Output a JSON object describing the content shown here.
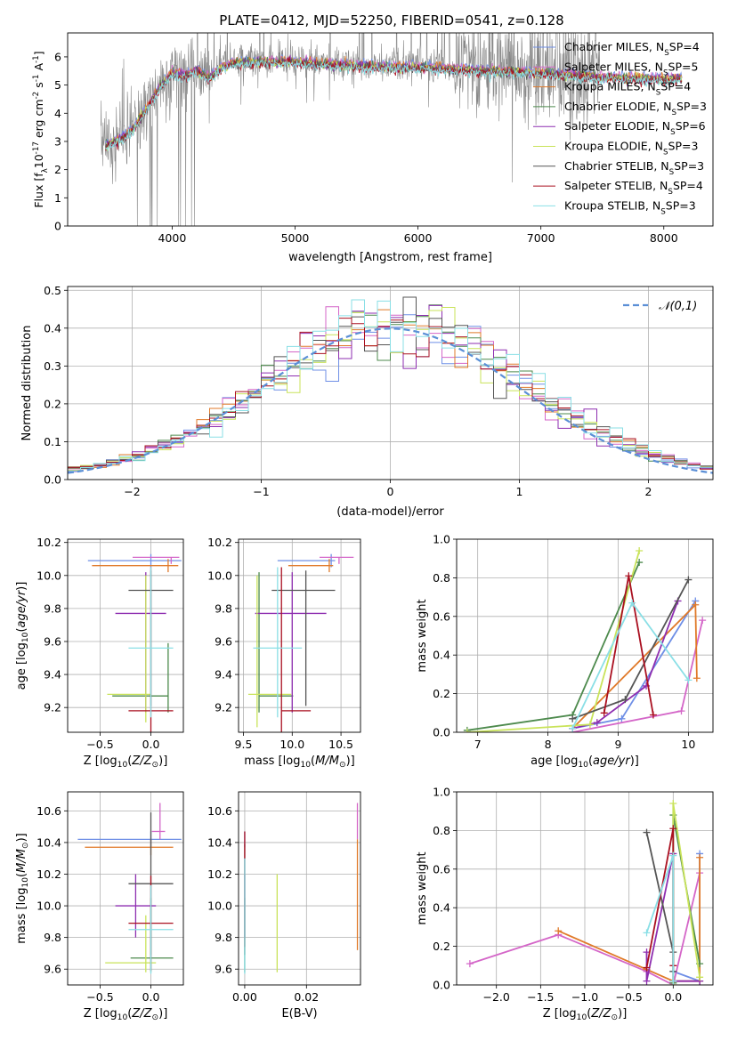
{
  "title": "PLATE=0412, MJD=52250, FIBERID=0541, z=0.128",
  "colors": {
    "Chabrier MILES": "#6f8fe6",
    "Salpeter MILES": "#d466c8",
    "Kroupa MILES": "#e07a2a",
    "Chabrier ELODIE": "#4d8a4d",
    "Salpeter ELODIE": "#8e2eb0",
    "Kroupa ELODIE": "#c9e35a",
    "Chabrier STELIB": "#555555",
    "Salpeter STELIB": "#aa1020",
    "Kroupa STELIB": "#8adfe6",
    "data_spectrum": "#888888",
    "gaussian": "#5b8fd6",
    "grid": "#b0b0b0"
  },
  "chart_data": [
    {
      "id": "spectrum",
      "type": "line",
      "xlabel": "wavelength [Angstrom, rest frame]",
      "ylabel": "Flux [f_λ10^{-17} erg cm^{-2} s^{-1} A^{-1}]",
      "xlim": [
        3150,
        8400
      ],
      "ylim": [
        0,
        6.85
      ],
      "xticks": [
        4000,
        5000,
        6000,
        7000,
        8000
      ],
      "yticks": [
        0,
        1,
        2,
        3,
        4,
        5,
        6
      ],
      "grid": false,
      "legend_position": "top-right",
      "legend": [
        {
          "label": "Chabrier MILES, N_SSP=4",
          "model": "Chabrier MILES"
        },
        {
          "label": "Salpeter MILES, N_SSP=5",
          "model": "Salpeter MILES"
        },
        {
          "label": "Kroupa MILES, N_SSP=4",
          "model": "Kroupa MILES"
        },
        {
          "label": "Chabrier ELODIE, N_SSP=3",
          "model": "Chabrier ELODIE"
        },
        {
          "label": "Salpeter ELODIE, N_SSP=6",
          "model": "Salpeter ELODIE"
        },
        {
          "label": "Kroupa ELODIE, N_SSP=3",
          "model": "Kroupa ELODIE"
        },
        {
          "label": "Chabrier STELIB, N_SSP=3",
          "model": "Chabrier STELIB"
        },
        {
          "label": "Salpeter STELIB, N_SSP=4",
          "model": "Salpeter STELIB"
        },
        {
          "label": "Kroupa STELIB, N_SSP=3",
          "model": "Kroupa STELIB"
        }
      ],
      "continuum": {
        "x": [
          3420,
          3500,
          3600,
          3700,
          3800,
          3900,
          4000,
          4100,
          4200,
          4300,
          4400,
          4500,
          4700,
          5000,
          5500,
          6000,
          6500,
          7000,
          7500,
          8000,
          8300
        ],
        "y": [
          2.9,
          3.0,
          3.2,
          3.6,
          4.3,
          5.0,
          5.5,
          5.4,
          5.6,
          5.3,
          5.7,
          5.85,
          5.9,
          5.9,
          5.75,
          5.7,
          5.6,
          5.5,
          5.35,
          5.3,
          5.3
        ]
      }
    },
    {
      "id": "residuals",
      "type": "step",
      "xlabel": "(data-model)/error",
      "ylabel": "Normed distribution",
      "xlim": [
        -2.5,
        2.5
      ],
      "ylim": [
        0,
        0.51
      ],
      "xticks": [
        -2,
        -1,
        0,
        1,
        2
      ],
      "yticks": [
        0.0,
        0.1,
        0.2,
        0.3,
        0.4,
        0.5
      ],
      "grid": true,
      "bin_width": 0.1,
      "legend_position": "top-right",
      "gaussian_label": "𝒩(0,1)",
      "gaussian": {
        "mean": 0,
        "sigma": 1
      }
    },
    {
      "id": "z-age",
      "type": "errorbar",
      "xlabel": "Z [log10(Z/Z⊙)]",
      "ylabel": "age  [log10(age/yr)]",
      "xlim": [
        -0.82,
        0.32
      ],
      "ylim": [
        9.05,
        10.22
      ],
      "xticks": [
        -0.5,
        0.0
      ],
      "yticks": [
        9.2,
        9.4,
        9.6,
        9.8,
        10.0,
        10.2
      ],
      "grid": true,
      "points": [
        {
          "model": "Chabrier MILES",
          "x": 0.0,
          "xerr": [
            0.62,
            0.3
          ],
          "y": 10.09,
          "yerr": [
            0.04,
            0.04
          ]
        },
        {
          "model": "Salpeter MILES",
          "x": 0.2,
          "xerr": [
            0.38,
            0.08
          ],
          "y": 10.11,
          "yerr": [
            0.04,
            0.0
          ]
        },
        {
          "model": "Kroupa MILES",
          "x": 0.17,
          "xerr": [
            0.75,
            0.1
          ],
          "y": 10.06,
          "yerr": [
            0.04,
            0.04
          ]
        },
        {
          "model": "Chabrier ELODIE",
          "x": 0.17,
          "xerr": [
            0.55,
            0.0
          ],
          "y": 9.27,
          "yerr": [
            0.1,
            0.32
          ]
        },
        {
          "model": "Salpeter ELODIE",
          "x": -0.05,
          "xerr": [
            0.3,
            0.2
          ],
          "y": 9.77,
          "yerr": [
            0.6,
            0.25
          ]
        },
        {
          "model": "Kroupa ELODIE",
          "x": -0.05,
          "xerr": [
            0.38,
            0.05
          ],
          "y": 9.28,
          "yerr": [
            0.17,
            0.72
          ]
        },
        {
          "model": "Chabrier STELIB",
          "x": 0.0,
          "xerr": [
            0.22,
            0.22
          ],
          "y": 9.91,
          "yerr": [
            0.7,
            0.12
          ]
        },
        {
          "model": "Salpeter STELIB",
          "x": 0.0,
          "xerr": [
            0.22,
            0.22
          ],
          "y": 9.18,
          "yerr": [
            0.14,
            0.87
          ]
        },
        {
          "model": "Kroupa STELIB",
          "x": 0.0,
          "xerr": [
            0.22,
            0.22
          ],
          "y": 9.56,
          "yerr": [
            0.42,
            0.49
          ]
        }
      ]
    },
    {
      "id": "mass-age",
      "type": "errorbar",
      "xlabel": "mass [log10(M/M⊙)]",
      "ylabel": "",
      "xlim": [
        9.45,
        10.7
      ],
      "ylim": [
        9.05,
        10.22
      ],
      "xticks": [
        9.5,
        10.0,
        10.5
      ],
      "yticks": [
        9.2,
        9.4,
        9.6,
        9.8,
        10.0,
        10.2
      ],
      "grid": true,
      "points": [
        {
          "model": "Chabrier MILES",
          "x": 10.4,
          "xerr": [
            0.55,
            0.04
          ],
          "y": 10.09,
          "yerr": [
            0.04,
            0.04
          ]
        },
        {
          "model": "Salpeter MILES",
          "x": 10.48,
          "xerr": [
            0.2,
            0.15
          ],
          "y": 10.11,
          "yerr": [
            0.04,
            0.0
          ]
        },
        {
          "model": "Kroupa MILES",
          "x": 10.38,
          "xerr": [
            0.42,
            0.04
          ],
          "y": 10.06,
          "yerr": [
            0.04,
            0.04
          ]
        },
        {
          "model": "Chabrier ELODIE",
          "x": 9.66,
          "xerr": [
            0.0,
            0.35
          ],
          "y": 9.27,
          "yerr": [
            0.1,
            0.75
          ]
        },
        {
          "model": "Salpeter ELODIE",
          "x": 10.0,
          "xerr": [
            0.38,
            0.35
          ],
          "y": 9.77,
          "yerr": [
            0.6,
            0.25
          ]
        },
        {
          "model": "Kroupa ELODIE",
          "x": 9.64,
          "xerr": [
            0.09,
            0.35
          ],
          "y": 9.28,
          "yerr": [
            0.2,
            0.72
          ]
        },
        {
          "model": "Chabrier STELIB",
          "x": 10.14,
          "xerr": [
            0.35,
            0.3
          ],
          "y": 9.91,
          "yerr": [
            0.7,
            0.12
          ]
        },
        {
          "model": "Salpeter STELIB",
          "x": 9.89,
          "xerr": [
            0.0,
            0.3
          ],
          "y": 9.18,
          "yerr": [
            0.14,
            0.87
          ]
        },
        {
          "model": "Kroupa STELIB",
          "x": 9.85,
          "xerr": [
            0.25,
            0.25
          ],
          "y": 9.56,
          "yerr": [
            0.42,
            0.49
          ]
        }
      ]
    },
    {
      "id": "age-weight",
      "type": "line",
      "xlabel": "age  [log10(age/yr)]",
      "ylabel": "mass weight",
      "xlim": [
        6.7,
        10.35
      ],
      "ylim": [
        0,
        1.0
      ],
      "xticks": [
        7,
        8,
        9,
        10
      ],
      "yticks": [
        0.0,
        0.2,
        0.4,
        0.6,
        0.8,
        1.0
      ],
      "grid": true,
      "series": [
        {
          "model": "Chabrier MILES",
          "x": [
            8.35,
            9.05,
            10.1
          ],
          "y": [
            0.02,
            0.07,
            0.68
          ]
        },
        {
          "model": "Salpeter MILES",
          "x": [
            8.35,
            9.9,
            10.2
          ],
          "y": [
            0.0,
            0.11,
            0.58
          ]
        },
        {
          "model": "Kroupa MILES",
          "x": [
            8.35,
            10.1,
            10.12
          ],
          "y": [
            0.02,
            0.66,
            0.28
          ]
        },
        {
          "model": "Chabrier ELODIE",
          "x": [
            6.85,
            8.35,
            9.3
          ],
          "y": [
            0.01,
            0.09,
            0.88
          ]
        },
        {
          "model": "Salpeter ELODIE",
          "x": [
            8.35,
            8.7,
            9.4,
            9.85
          ],
          "y": [
            0.02,
            0.05,
            0.24,
            0.68
          ]
        },
        {
          "model": "Kroupa ELODIE",
          "x": [
            6.85,
            8.6,
            9.3
          ],
          "y": [
            0.0,
            0.04,
            0.94
          ]
        },
        {
          "model": "Chabrier STELIB",
          "x": [
            8.35,
            9.1,
            10.0
          ],
          "y": [
            0.07,
            0.17,
            0.79
          ]
        },
        {
          "model": "Salpeter STELIB",
          "x": [
            8.8,
            9.15,
            9.5
          ],
          "y": [
            0.1,
            0.81,
            0.09
          ]
        },
        {
          "model": "Kroupa STELIB",
          "x": [
            8.35,
            9.2,
            10.0
          ],
          "y": [
            0.02,
            0.67,
            0.27
          ]
        }
      ]
    },
    {
      "id": "z-mass",
      "type": "errorbar",
      "xlabel": "Z [log10(Z/Z⊙)]",
      "ylabel": "mass [log10(M/M⊙)]",
      "xlim": [
        -0.82,
        0.32
      ],
      "ylim": [
        9.5,
        10.72
      ],
      "xticks": [
        -0.5,
        0.0
      ],
      "yticks": [
        9.6,
        9.8,
        10.0,
        10.2,
        10.4,
        10.6
      ],
      "grid": true,
      "points": [
        {
          "model": "Chabrier MILES",
          "x": 0.0,
          "xerr": [
            0.72,
            0.3
          ],
          "y": 10.42,
          "yerr": [
            0.05,
            0.05
          ]
        },
        {
          "model": "Salpeter MILES",
          "x": 0.09,
          "xerr": [
            0.08,
            0.05
          ],
          "y": 10.47,
          "yerr": [
            0.05,
            0.18
          ]
        },
        {
          "model": "Kroupa MILES",
          "x": 0.0,
          "xerr": [
            0.65,
            0.22
          ],
          "y": 10.37,
          "yerr": [
            0.05,
            0.05
          ]
        },
        {
          "model": "Chabrier ELODIE",
          "x": 0.0,
          "xerr": [
            0.2,
            0.22
          ],
          "y": 9.67,
          "yerr": [
            0.09,
            0.38
          ]
        },
        {
          "model": "Salpeter ELODIE",
          "x": -0.15,
          "xerr": [
            0.2,
            0.2
          ],
          "y": 10.0,
          "yerr": [
            0.2,
            0.2
          ]
        },
        {
          "model": "Kroupa ELODIE",
          "x": -0.05,
          "xerr": [
            0.4,
            0.1
          ],
          "y": 9.64,
          "yerr": [
            0.06,
            0.3
          ]
        },
        {
          "model": "Chabrier STELIB",
          "x": 0.0,
          "xerr": [
            0.22,
            0.22
          ],
          "y": 10.14,
          "yerr": [
            0.45,
            0.45
          ]
        },
        {
          "model": "Salpeter STELIB",
          "x": 0.0,
          "xerr": [
            0.22,
            0.22
          ],
          "y": 9.89,
          "yerr": [
            0.3,
            0.3
          ]
        },
        {
          "model": "Kroupa STELIB",
          "x": 0.0,
          "xerr": [
            0.22,
            0.22
          ],
          "y": 9.85,
          "yerr": [
            0.28,
            0.28
          ]
        }
      ]
    },
    {
      "id": "ebv-mass",
      "type": "errorbar",
      "xlabel": "E(B-V)",
      "ylabel": "",
      "xlim": [
        -0.002,
        0.0375
      ],
      "ylim": [
        9.5,
        10.72
      ],
      "xticks": [
        0.0,
        0.02
      ],
      "yticks": [
        9.6,
        9.8,
        10.0,
        10.2,
        10.4,
        10.6
      ],
      "grid": true,
      "points": [
        {
          "model": "Chabrier MILES",
          "x": 0.0,
          "xerr": [
            0,
            0
          ],
          "y": 10.42,
          "yerr": [
            0.05,
            0.05
          ]
        },
        {
          "model": "Salpeter MILES",
          "x": 0.0365,
          "xerr": [
            0,
            0
          ],
          "y": 10.47,
          "yerr": [
            0.05,
            0.18
          ]
        },
        {
          "model": "Kroupa MILES",
          "x": 0.0365,
          "xerr": [
            0,
            0
          ],
          "y": 10.37,
          "yerr": [
            0.65,
            0.05
          ]
        },
        {
          "model": "Chabrier ELODIE",
          "x": 0.0,
          "xerr": [
            0,
            0
          ],
          "y": 9.67,
          "yerr": [
            0.09,
            0.38
          ]
        },
        {
          "model": "Salpeter ELODIE",
          "x": 0.0,
          "xerr": [
            0,
            0
          ],
          "y": 10.0,
          "yerr": [
            0.2,
            0.2
          ]
        },
        {
          "model": "Kroupa ELODIE",
          "x": 0.0105,
          "xerr": [
            0,
            0
          ],
          "y": 9.64,
          "yerr": [
            0.06,
            0.56
          ]
        },
        {
          "model": "Chabrier STELIB",
          "x": 0.0,
          "xerr": [
            0,
            0
          ],
          "y": 10.14,
          "yerr": [
            0.45,
            0.25
          ]
        },
        {
          "model": "Salpeter STELIB",
          "x": 0.0,
          "xerr": [
            0,
            0
          ],
          "y": 9.89,
          "yerr": [
            0.15,
            0.58
          ]
        },
        {
          "model": "Kroupa STELIB",
          "x": 0.0,
          "xerr": [
            0,
            0
          ],
          "y": 9.85,
          "yerr": [
            0.28,
            0.45
          ]
        }
      ]
    },
    {
      "id": "z-weight",
      "type": "line",
      "xlabel": "Z [log10(Z/Z⊙)]",
      "ylabel": "mass weight",
      "xlim": [
        -2.45,
        0.45
      ],
      "ylim": [
        0,
        1.0
      ],
      "xticks": [
        -2.0,
        -1.5,
        -1.0,
        -0.5,
        0.0
      ],
      "yticks": [
        0.0,
        0.2,
        0.4,
        0.6,
        0.8,
        1.0
      ],
      "grid": true,
      "series": [
        {
          "model": "Chabrier MILES",
          "x": [
            0.0,
            0.3,
            0.3
          ],
          "y": [
            0.07,
            0.02,
            0.68
          ]
        },
        {
          "model": "Salpeter MILES",
          "x": [
            -2.3,
            -1.3,
            -0.3,
            0.0,
            0.3
          ],
          "y": [
            0.11,
            0.26,
            0.07,
            0.0,
            0.58
          ]
        },
        {
          "model": "Kroupa MILES",
          "x": [
            -1.3,
            -0.3,
            0.0,
            0.3,
            0.3
          ],
          "y": [
            0.28,
            0.08,
            0.02,
            0.02,
            0.66
          ]
        },
        {
          "model": "Chabrier ELODIE",
          "x": [
            0.0,
            0.0,
            0.3
          ],
          "y": [
            0.01,
            0.88,
            0.11
          ]
        },
        {
          "model": "Salpeter ELODIE",
          "x": [
            -0.3,
            -0.3,
            0.0,
            0.0,
            0.3
          ],
          "y": [
            0.17,
            0.02,
            0.68,
            0.02,
            0.02
          ]
        },
        {
          "model": "Kroupa ELODIE",
          "x": [
            0.0,
            0.0,
            0.3
          ],
          "y": [
            0.0,
            0.94,
            0.04
          ]
        },
        {
          "model": "Chabrier STELIB",
          "x": [
            -0.3,
            0.0,
            0.0
          ],
          "y": [
            0.79,
            0.17,
            0.07
          ]
        },
        {
          "model": "Salpeter STELIB",
          "x": [
            -0.3,
            0.0,
            0.0
          ],
          "y": [
            0.09,
            0.81,
            0.1
          ]
        },
        {
          "model": "Kroupa STELIB",
          "x": [
            -0.3,
            0.0,
            0.0
          ],
          "y": [
            0.27,
            0.67,
            0.02
          ]
        }
      ]
    }
  ]
}
